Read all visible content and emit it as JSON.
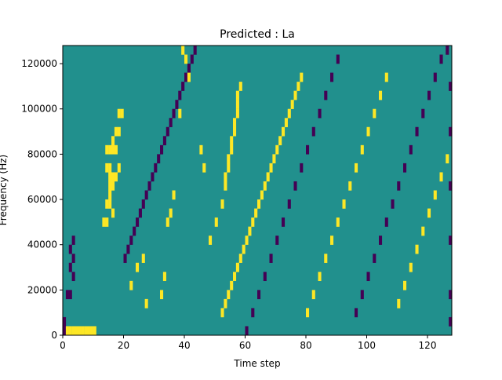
{
  "chart_data": {
    "type": "heatmap",
    "title": "Predicted : La",
    "xlabel": "Time step",
    "ylabel": "Frequency (Hz)",
    "xlim": [
      0,
      128
    ],
    "ylim": [
      0,
      128000
    ],
    "x_ticks": [
      0,
      20,
      40,
      60,
      80,
      100,
      120
    ],
    "y_ticks": [
      0,
      20000,
      40000,
      60000,
      80000,
      100000,
      120000
    ],
    "x_tick_labels": [
      "0",
      "20",
      "40",
      "60",
      "80",
      "100",
      "120"
    ],
    "y_tick_labels": [
      "0",
      "20000",
      "40000",
      "60000",
      "80000",
      "100000",
      "120000"
    ],
    "grid": false,
    "legend": "none",
    "n_time_steps": 128,
    "n_freq_bins": 32,
    "value_levels": [
      -1,
      0,
      1
    ],
    "colors": {
      "-1": "#440154",
      "0": "#21908d",
      "1": "#fde725"
    },
    "description": "Ternary spectrogram: background level 0 (teal), sparse -1 (purple) and +1 (yellow) cells; dense yellow column near time step 52-58.",
    "high_cells": [
      [
        1,
        0
      ],
      [
        2,
        0
      ],
      [
        3,
        0
      ],
      [
        4,
        0
      ],
      [
        5,
        0
      ],
      [
        6,
        0
      ],
      [
        7,
        0
      ],
      [
        8,
        0
      ],
      [
        9,
        0
      ],
      [
        10,
        0
      ],
      [
        13,
        12
      ],
      [
        14,
        12
      ],
      [
        15,
        15
      ],
      [
        14,
        18
      ],
      [
        15,
        18
      ],
      [
        16,
        20
      ],
      [
        17,
        20
      ],
      [
        18,
        22
      ],
      [
        15,
        16
      ],
      [
        16,
        16
      ],
      [
        14,
        14
      ],
      [
        15,
        14
      ],
      [
        16,
        13
      ],
      [
        15,
        17
      ],
      [
        16,
        17
      ],
      [
        17,
        17
      ],
      [
        18,
        18
      ],
      [
        14,
        20
      ],
      [
        15,
        20
      ],
      [
        16,
        21
      ],
      [
        17,
        22
      ],
      [
        18,
        24
      ],
      [
        19,
        24
      ],
      [
        22,
        5
      ],
      [
        24,
        7
      ],
      [
        26,
        8
      ],
      [
        27,
        3
      ],
      [
        32,
        4
      ],
      [
        33,
        6
      ],
      [
        34,
        12
      ],
      [
        35,
        13
      ],
      [
        36,
        15
      ],
      [
        38,
        24
      ],
      [
        39,
        31
      ],
      [
        40,
        30
      ],
      [
        41,
        28
      ],
      [
        45,
        20
      ],
      [
        46,
        18
      ],
      [
        48,
        10
      ],
      [
        50,
        12
      ],
      [
        52,
        14
      ],
      [
        53,
        16
      ],
      [
        53,
        17
      ],
      [
        54,
        18
      ],
      [
        54,
        19
      ],
      [
        55,
        20
      ],
      [
        55,
        21
      ],
      [
        56,
        22
      ],
      [
        56,
        23
      ],
      [
        57,
        24
      ],
      [
        57,
        25
      ],
      [
        57,
        26
      ],
      [
        58,
        27
      ],
      [
        52,
        2
      ],
      [
        53,
        3
      ],
      [
        54,
        4
      ],
      [
        55,
        5
      ],
      [
        56,
        6
      ],
      [
        57,
        7
      ],
      [
        58,
        8
      ],
      [
        59,
        9
      ],
      [
        60,
        10
      ],
      [
        61,
        11
      ],
      [
        62,
        12
      ],
      [
        63,
        13
      ],
      [
        64,
        14
      ],
      [
        65,
        15
      ],
      [
        66,
        16
      ],
      [
        67,
        17
      ],
      [
        68,
        18
      ],
      [
        69,
        19
      ],
      [
        70,
        20
      ],
      [
        71,
        21
      ],
      [
        72,
        22
      ],
      [
        73,
        23
      ],
      [
        74,
        24
      ],
      [
        75,
        25
      ],
      [
        76,
        26
      ],
      [
        77,
        27
      ],
      [
        78,
        28
      ],
      [
        80,
        2
      ],
      [
        82,
        4
      ],
      [
        84,
        6
      ],
      [
        86,
        8
      ],
      [
        88,
        10
      ],
      [
        90,
        12
      ],
      [
        92,
        14
      ],
      [
        94,
        16
      ],
      [
        96,
        18
      ],
      [
        98,
        20
      ],
      [
        100,
        22
      ],
      [
        102,
        24
      ],
      [
        104,
        26
      ],
      [
        106,
        28
      ],
      [
        110,
        3
      ],
      [
        112,
        5
      ],
      [
        114,
        7
      ],
      [
        116,
        9
      ],
      [
        118,
        11
      ],
      [
        120,
        13
      ],
      [
        122,
        15
      ],
      [
        124,
        17
      ],
      [
        126,
        19
      ]
    ],
    "low_cells": [
      [
        0,
        0
      ],
      [
        0,
        1
      ],
      [
        1,
        4
      ],
      [
        2,
        4
      ],
      [
        3,
        6
      ],
      [
        2,
        7
      ],
      [
        3,
        8
      ],
      [
        2,
        9
      ],
      [
        3,
        10
      ],
      [
        20,
        8
      ],
      [
        21,
        9
      ],
      [
        22,
        10
      ],
      [
        23,
        11
      ],
      [
        24,
        12
      ],
      [
        25,
        13
      ],
      [
        26,
        14
      ],
      [
        27,
        15
      ],
      [
        28,
        16
      ],
      [
        29,
        17
      ],
      [
        30,
        18
      ],
      [
        31,
        19
      ],
      [
        32,
        20
      ],
      [
        33,
        21
      ],
      [
        34,
        22
      ],
      [
        35,
        23
      ],
      [
        36,
        24
      ],
      [
        37,
        25
      ],
      [
        38,
        26
      ],
      [
        39,
        27
      ],
      [
        40,
        28
      ],
      [
        41,
        29
      ],
      [
        42,
        30
      ],
      [
        43,
        31
      ],
      [
        60,
        0
      ],
      [
        62,
        2
      ],
      [
        64,
        4
      ],
      [
        66,
        6
      ],
      [
        68,
        8
      ],
      [
        70,
        10
      ],
      [
        72,
        12
      ],
      [
        74,
        14
      ],
      [
        76,
        16
      ],
      [
        78,
        18
      ],
      [
        80,
        20
      ],
      [
        82,
        22
      ],
      [
        84,
        24
      ],
      [
        86,
        26
      ],
      [
        88,
        28
      ],
      [
        90,
        30
      ],
      [
        96,
        2
      ],
      [
        98,
        4
      ],
      [
        100,
        6
      ],
      [
        102,
        8
      ],
      [
        104,
        10
      ],
      [
        106,
        12
      ],
      [
        108,
        14
      ],
      [
        110,
        16
      ],
      [
        112,
        18
      ],
      [
        114,
        20
      ],
      [
        116,
        22
      ],
      [
        118,
        24
      ],
      [
        120,
        26
      ],
      [
        122,
        28
      ],
      [
        124,
        30
      ],
      [
        126,
        31
      ],
      [
        127,
        27
      ],
      [
        127,
        22
      ],
      [
        127,
        16
      ],
      [
        127,
        10
      ],
      [
        127,
        4
      ],
      [
        127,
        1
      ]
    ]
  }
}
